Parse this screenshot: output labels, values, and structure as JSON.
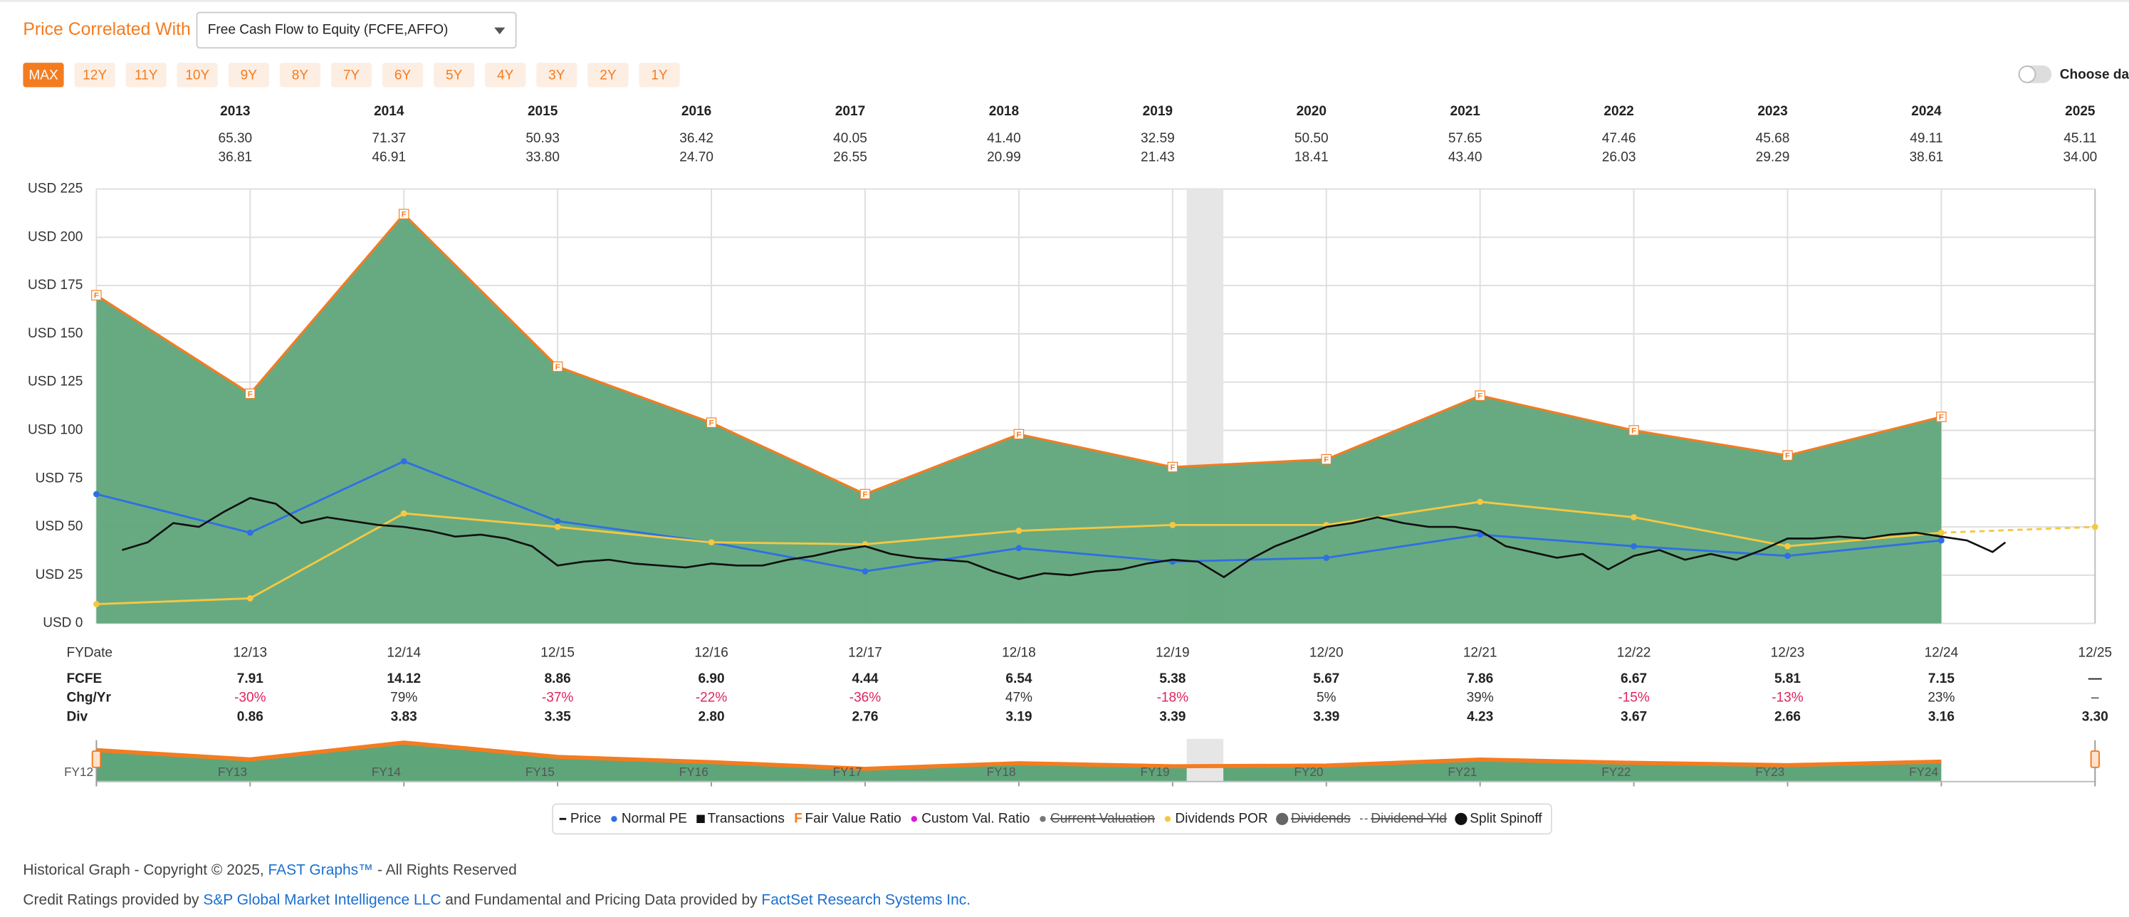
{
  "header": {
    "label": "Price Correlated With",
    "dropdown": "Free Cash Flow to Equity (FCFE,AFFO)"
  },
  "ranges": {
    "items": [
      "MAX",
      "12Y",
      "11Y",
      "10Y",
      "9Y",
      "8Y",
      "7Y",
      "6Y",
      "5Y",
      "4Y",
      "3Y",
      "2Y",
      "1Y"
    ],
    "active": 0
  },
  "choose_date": "Choose date",
  "year_table": {
    "years": [
      "2013",
      "2014",
      "2015",
      "2016",
      "2017",
      "2018",
      "2019",
      "2020",
      "2021",
      "2022",
      "2023",
      "2024",
      "2025"
    ],
    "high": [
      "65.30",
      "71.37",
      "50.93",
      "36.42",
      "40.05",
      "41.40",
      "32.59",
      "50.50",
      "57.65",
      "47.46",
      "45.68",
      "49.11",
      "45.11"
    ],
    "low": [
      "36.81",
      "46.91",
      "33.80",
      "24.70",
      "26.55",
      "20.99",
      "21.43",
      "18.41",
      "43.40",
      "26.03",
      "29.29",
      "38.61",
      "34.00"
    ]
  },
  "chart_data": {
    "type": "line",
    "x_label": "FYDate",
    "categories": [
      null,
      "12/13",
      "12/14",
      "12/15",
      "12/16",
      "12/17",
      "12/18",
      "12/19",
      "12/20",
      "12/21",
      "12/22",
      "12/23",
      "12/24",
      "12/25"
    ],
    "ylim": [
      0,
      225
    ],
    "yticks": [
      {
        "value": 0,
        "label": "USD 0"
      },
      {
        "value": 25,
        "label": "USD 25"
      },
      {
        "value": 50,
        "label": "USD 50"
      },
      {
        "value": 75,
        "label": "USD 75"
      },
      {
        "value": 100,
        "label": "USD 100"
      },
      {
        "value": 125,
        "label": "USD 125"
      },
      {
        "value": 150,
        "label": "USD 150"
      },
      {
        "value": 175,
        "label": "USD 175"
      },
      {
        "value": 200,
        "label": "USD 200"
      },
      {
        "value": 225,
        "label": "USD 225"
      }
    ],
    "grid": true,
    "series": [
      {
        "name": "Fair Value Ratio",
        "type": "area",
        "color": "#f47c20",
        "fill": "#5fa57a",
        "marker": "F",
        "values": [
          170,
          119,
          212,
          133,
          104,
          67,
          98,
          81,
          85,
          118,
          100,
          87,
          107,
          null
        ]
      },
      {
        "name": "Normal PE",
        "type": "line",
        "color": "#2f6fe4",
        "marker": "dot",
        "values": [
          67,
          47,
          84,
          53,
          42,
          27,
          39,
          32,
          34,
          46,
          40,
          35,
          43,
          null
        ]
      },
      {
        "name": "Dividends POR",
        "type": "line",
        "color": "#f5c842",
        "marker": "dot",
        "dash_last": true,
        "values": [
          10,
          13,
          57,
          50,
          42,
          41,
          48,
          51,
          51,
          63,
          55,
          40,
          47,
          50
        ]
      },
      {
        "name": "Price",
        "type": "price",
        "color": "#111111",
        "x": [
          "02/13",
          "04/13",
          "06/13",
          "08/13",
          "10/13",
          "12/13",
          "02/14",
          "04/14",
          "06/14",
          "08/14",
          "10/14",
          "12/14",
          "02/15",
          "04/15",
          "06/15",
          "08/15",
          "10/15",
          "12/15",
          "02/16",
          "04/16",
          "06/16",
          "08/16",
          "10/16",
          "12/16",
          "02/17",
          "04/17",
          "06/17",
          "08/17",
          "10/17",
          "12/17",
          "02/18",
          "04/18",
          "06/18",
          "08/18",
          "10/18",
          "12/18",
          "02/19",
          "04/19",
          "06/19",
          "08/19",
          "10/19",
          "12/19",
          "02/20",
          "04/20",
          "06/20",
          "08/20",
          "10/20",
          "12/20",
          "02/21",
          "04/21",
          "06/21",
          "08/21",
          "10/21",
          "12/21",
          "02/22",
          "04/22",
          "06/22",
          "08/22",
          "10/22",
          "12/22",
          "02/23",
          "04/23",
          "06/23",
          "08/23",
          "10/23",
          "12/23",
          "02/24",
          "04/24",
          "06/24",
          "08/24",
          "10/24",
          "12/24",
          "02/25",
          "04/25",
          "05/25"
        ],
        "values": [
          38,
          42,
          52,
          50,
          58,
          65,
          62,
          52,
          55,
          53,
          51,
          50,
          48,
          45,
          46,
          44,
          40,
          30,
          32,
          33,
          31,
          30,
          29,
          31,
          30,
          30,
          33,
          35,
          38,
          40,
          36,
          34,
          33,
          32,
          27,
          23,
          26,
          25,
          27,
          28,
          31,
          33,
          32,
          24,
          33,
          40,
          45,
          50,
          52,
          55,
          52,
          50,
          50,
          48,
          40,
          37,
          34,
          36,
          28,
          35,
          38,
          33,
          36,
          33,
          38,
          44,
          44,
          45,
          44,
          46,
          47,
          45,
          43,
          37,
          42
        ]
      }
    ],
    "legend": [
      {
        "name": "Price",
        "symbol": "dash",
        "color": "#111111",
        "struck": false
      },
      {
        "name": "Normal PE",
        "symbol": "dot",
        "color": "#2f6fe4",
        "struck": false
      },
      {
        "name": "Transactions",
        "symbol": "square",
        "color": "#111111",
        "struck": false
      },
      {
        "name": "Fair Value Ratio",
        "symbol": "letter",
        "letter": "F",
        "color": "#f47c20",
        "struck": false
      },
      {
        "name": "Custom Val. Ratio",
        "symbol": "dot",
        "color": "#d81bd8",
        "struck": false
      },
      {
        "name": "Current Valuation",
        "symbol": "dot",
        "color": "#777777",
        "struck": true
      },
      {
        "name": "Dividends POR",
        "symbol": "dot",
        "color": "#f5c842",
        "struck": false
      },
      {
        "name": "Dividends",
        "symbol": "circle",
        "color": "#666666",
        "struck": true
      },
      {
        "name": "Dividend Yld",
        "symbol": "dashed",
        "color": "#777777",
        "struck": true
      },
      {
        "name": "Split Spinoff",
        "symbol": "circle",
        "color": "#111111",
        "struck": false
      }
    ]
  },
  "stats_table": {
    "rows": [
      {
        "label": "FCFE",
        "signed": false,
        "values": [
          "7.91",
          "14.12",
          "8.86",
          "6.90",
          "4.44",
          "6.54",
          "5.38",
          "5.67",
          "7.86",
          "6.67",
          "5.81",
          "7.15",
          "—"
        ]
      },
      {
        "label": "Chg/Yr",
        "signed": true,
        "values": [
          "-30%",
          "79%",
          "-37%",
          "-22%",
          "-36%",
          "47%",
          "-18%",
          "5%",
          "39%",
          "-15%",
          "-13%",
          "23%",
          "–"
        ]
      },
      {
        "label": "Div",
        "signed": false,
        "values": [
          "0.86",
          "3.83",
          "3.35",
          "2.80",
          "2.76",
          "3.19",
          "3.39",
          "3.39",
          "4.23",
          "3.67",
          "2.66",
          "3.16",
          "3.30"
        ]
      }
    ]
  },
  "navigator": {
    "labels": [
      "FY12",
      "FY13",
      "FY14",
      "FY15",
      "FY16",
      "FY17",
      "FY18",
      "FY19",
      "FY20",
      "FY21",
      "FY22",
      "FY23",
      "FY24"
    ]
  },
  "footer": {
    "lines": [
      [
        {
          "text": "Historical Graph - Copyright © 2025, ",
          "link": false
        },
        {
          "text": "FAST Graphs™",
          "link": true
        },
        {
          "text": " - All Rights Reserved",
          "link": false
        }
      ],
      [
        {
          "text": "Credit Ratings provided by ",
          "link": false
        },
        {
          "text": "S&P Global Market Intelligence LLC",
          "link": true
        },
        {
          "text": " and Fundamental and Pricing Data provided by ",
          "link": false
        },
        {
          "text": "FactSet Research Systems Inc.",
          "link": true
        }
      ]
    ]
  }
}
